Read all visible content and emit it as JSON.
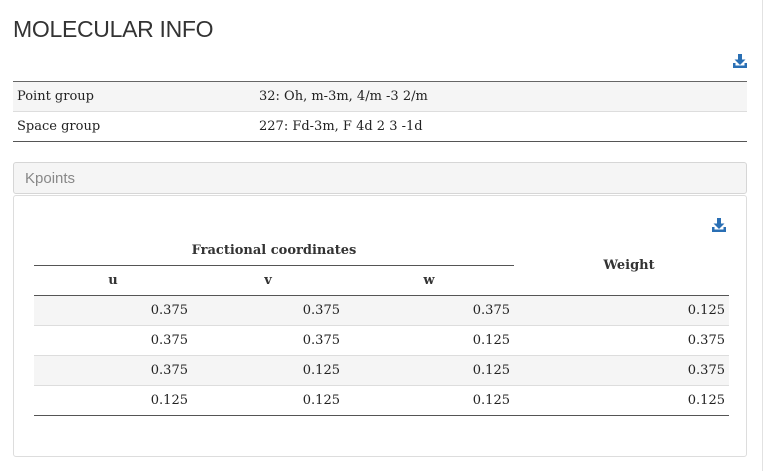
{
  "title": "MOLECULAR INFO",
  "icons": {
    "download": "download-icon"
  },
  "info_rows": [
    {
      "label": "Point group",
      "value": "32: Oh, m-3m, 4/m -3 2/m"
    },
    {
      "label": "Space group",
      "value": "227: Fd-3m, F 4d 2 3 -1d"
    }
  ],
  "kpoints": {
    "heading": "Kpoints",
    "group_header": "Fractional coordinates",
    "columns": [
      "u",
      "v",
      "w"
    ],
    "weight_header": "Weight",
    "rows": [
      [
        "0.375",
        "0.375",
        "0.375",
        "0.125"
      ],
      [
        "0.375",
        "0.375",
        "0.125",
        "0.375"
      ],
      [
        "0.375",
        "0.125",
        "0.125",
        "0.375"
      ],
      [
        "0.125",
        "0.125",
        "0.125",
        "0.125"
      ]
    ]
  },
  "colors": {
    "download_icon": "#2a6fb4",
    "stripe": "#f5f5f5",
    "border": "#dddddd"
  }
}
